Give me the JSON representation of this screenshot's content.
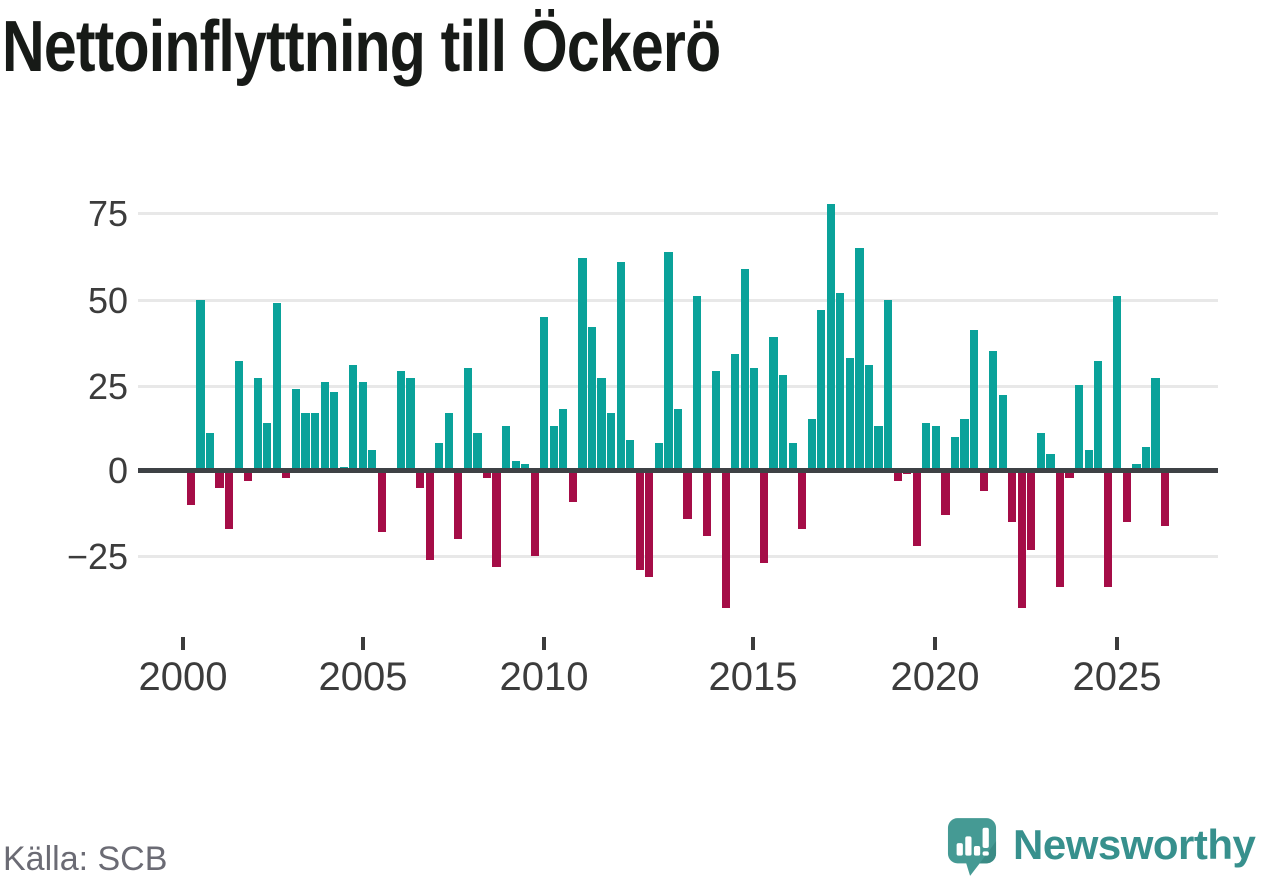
{
  "title": "Nettoinflyttning till Öckerö",
  "source": "Källa: SCB",
  "brand": {
    "name": "Newsworthy",
    "icon": "newsworthy-speech-bubble-bar-chart-icon",
    "icon_color": "#459a94",
    "icon_shadow_color": "#3a8b85",
    "wordmark_color": "#37908d"
  },
  "chart_data": {
    "type": "bar",
    "title": "Nettoinflyttning till Öckerö",
    "x_unit": "quarter",
    "start": "2000Q1",
    "end": "2025Q3",
    "grid": "horizontal",
    "legend": "none",
    "ylim": [
      -45,
      82
    ],
    "y_ticks": [
      75,
      50,
      25,
      0,
      -25
    ],
    "y_tick_labels": [
      "75",
      "50",
      "25",
      "0",
      "−25"
    ],
    "x_tick_labels": [
      "2000",
      "2005",
      "2010",
      "2015",
      "2020",
      "2025"
    ],
    "colors": {
      "positive": "#0aa29a",
      "negative": "#a50d47"
    },
    "quarters": [
      "2000Q1",
      "2000Q2",
      "2000Q3",
      "2000Q4",
      "2001Q1",
      "2001Q2",
      "2001Q3",
      "2001Q4",
      "2002Q1",
      "2002Q2",
      "2002Q3",
      "2002Q4",
      "2003Q1",
      "2003Q2",
      "2003Q3",
      "2003Q4",
      "2004Q1",
      "2004Q2",
      "2004Q3",
      "2004Q4",
      "2005Q1",
      "2005Q2",
      "2005Q3",
      "2005Q4",
      "2006Q1",
      "2006Q2",
      "2006Q3",
      "2006Q4",
      "2007Q1",
      "2007Q2",
      "2007Q3",
      "2007Q4",
      "2008Q1",
      "2008Q2",
      "2008Q3",
      "2008Q4",
      "2009Q1",
      "2009Q2",
      "2009Q3",
      "2009Q4",
      "2010Q1",
      "2010Q2",
      "2010Q3",
      "2010Q4",
      "2011Q1",
      "2011Q2",
      "2011Q3",
      "2011Q4",
      "2012Q1",
      "2012Q2",
      "2012Q3",
      "2012Q4",
      "2013Q1",
      "2013Q2",
      "2013Q3",
      "2013Q4",
      "2014Q1",
      "2014Q2",
      "2014Q3",
      "2014Q4",
      "2015Q1",
      "2015Q2",
      "2015Q3",
      "2015Q4",
      "2016Q1",
      "2016Q2",
      "2016Q3",
      "2016Q4",
      "2017Q1",
      "2017Q2",
      "2017Q3",
      "2017Q4",
      "2018Q1",
      "2018Q2",
      "2018Q3",
      "2018Q4",
      "2019Q1",
      "2019Q2",
      "2019Q3",
      "2019Q4",
      "2020Q1",
      "2020Q2",
      "2020Q3",
      "2020Q4",
      "2021Q1",
      "2021Q2",
      "2021Q3",
      "2021Q4",
      "2022Q1",
      "2022Q2",
      "2022Q3",
      "2022Q4",
      "2023Q1",
      "2023Q2",
      "2023Q3",
      "2023Q4",
      "2024Q1",
      "2024Q2",
      "2024Q3",
      "2024Q4",
      "2025Q1",
      "2025Q2",
      "2025Q3"
    ],
    "values": [
      -10,
      50,
      11,
      -5,
      -17,
      32,
      -3,
      27,
      14,
      49,
      -2,
      24,
      17,
      17,
      26,
      23,
      1,
      31,
      26,
      6,
      -18,
      0,
      29,
      27,
      -5,
      -26,
      8,
      17,
      -20,
      30,
      11,
      -2,
      -28,
      13,
      3,
      2,
      -25,
      45,
      13,
      18,
      -9,
      62,
      42,
      27,
      17,
      61,
      9,
      -29,
      -31,
      8,
      64,
      18,
      -14,
      51,
      -19,
      29,
      -40,
      34,
      59,
      30,
      -27,
      39,
      28,
      8,
      -17,
      15,
      47,
      78,
      52,
      33,
      65,
      31,
      13,
      50,
      -3,
      -1,
      -22,
      14,
      13,
      -13,
      10,
      15,
      41,
      -6,
      35,
      22,
      -15,
      -40,
      -23,
      11,
      5,
      -34,
      -2,
      25,
      6,
      32,
      -34,
      51,
      -15,
      2,
      7,
      27,
      -16
    ]
  }
}
